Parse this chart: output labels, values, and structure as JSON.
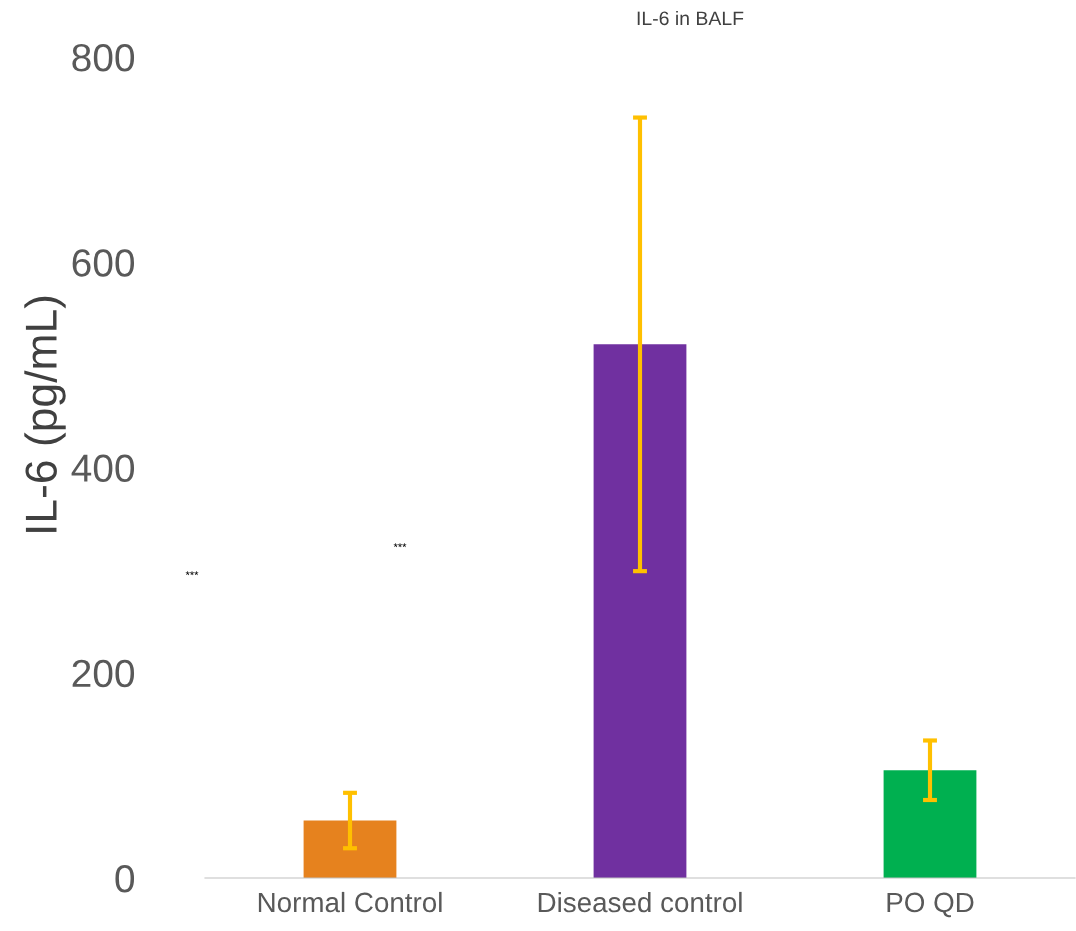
{
  "chart_data": {
    "type": "bar",
    "title": "IL-6 in BALF",
    "ylabel": "IL-6 (pg/mL)",
    "categories": [
      "Normal Control",
      "Diseased control",
      "PO QD"
    ],
    "values": [
      56,
      520,
      105
    ],
    "colors": [
      "#e6821e",
      "#7030a0",
      "#00b050"
    ],
    "errors": [
      27,
      221,
      29
    ],
    "ylim": [
      0,
      800
    ],
    "yticks": [
      0,
      200,
      400,
      600,
      800
    ],
    "grid": false,
    "annotations": [
      "***",
      "***"
    ]
  }
}
